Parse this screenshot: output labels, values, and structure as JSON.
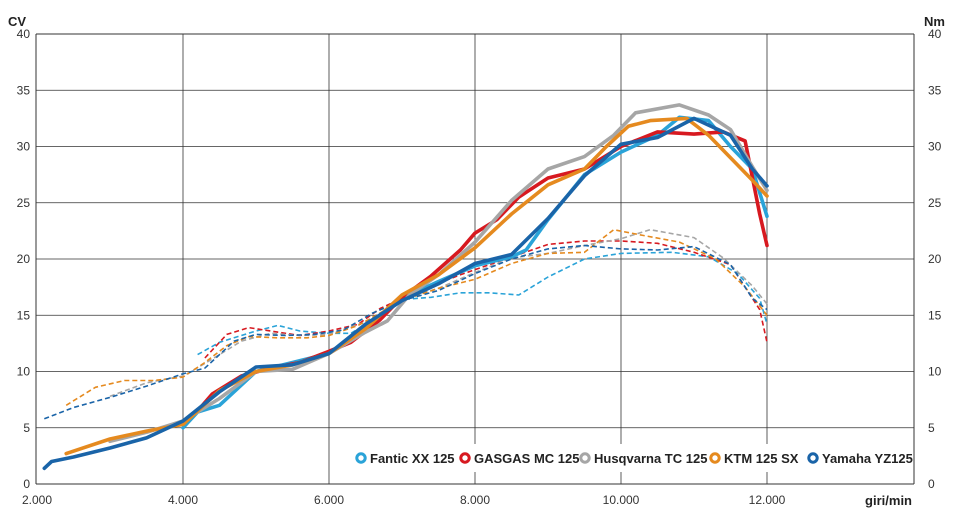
{
  "chart_data": {
    "type": "line",
    "left_unit": "CV",
    "right_unit": "Nm",
    "xlabel": "giri/min",
    "xlim": [
      2000,
      12000
    ],
    "ylim": [
      0,
      40
    ],
    "x_ticks": [
      2000,
      4000,
      6000,
      8000,
      10000,
      12000
    ],
    "x_tick_labels": [
      "2.000",
      "4.000",
      "6.000",
      "8.000",
      "10.000",
      "12.000"
    ],
    "y_ticks": [
      0,
      5,
      10,
      15,
      20,
      25,
      30,
      35,
      40
    ],
    "y_tick_labels": [
      "0",
      "5",
      "10",
      "15",
      "20",
      "25",
      "30",
      "35",
      "40"
    ],
    "grid": true,
    "legend_position": "bottom-right",
    "series": [
      {
        "name": "Fantic XX 125",
        "color": "#2aa3d8",
        "power": {
          "x": [
            4000,
            4200,
            4500,
            5000,
            5500,
            6000,
            6500,
            7000,
            7500,
            8000,
            8500,
            8700,
            9000,
            9500,
            10000,
            10500,
            10800,
            11200,
            11500,
            11800,
            12000
          ],
          "y": [
            5.0,
            6.4,
            7.0,
            10.0,
            10.8,
            11.6,
            13.8,
            16.5,
            18.0,
            19.4,
            20.2,
            20.8,
            23.5,
            27.5,
            29.5,
            31.0,
            32.6,
            32.3,
            30.0,
            28.0,
            23.8
          ]
        },
        "torque": {
          "x": [
            4200,
            4500,
            5000,
            5300,
            5600,
            6000,
            6300,
            6700,
            7000,
            7400,
            7800,
            8200,
            8600,
            9000,
            9500,
            10000,
            10700,
            11200,
            11600,
            11900,
            12000
          ],
          "y": [
            11.5,
            12.6,
            13.6,
            14.1,
            13.6,
            13.4,
            13.4,
            15.0,
            16.4,
            16.6,
            17.0,
            17.0,
            16.8,
            18.4,
            20.0,
            20.5,
            20.6,
            20.2,
            18.7,
            16.5,
            14.2
          ]
        }
      },
      {
        "name": "GASGAS MC 125",
        "color": "#d71920",
        "power": {
          "x": [
            4200,
            4400,
            4800,
            5200,
            5600,
            6000,
            6300,
            6700,
            7000,
            7400,
            7800,
            8000,
            8300,
            8600,
            9000,
            9500,
            10000,
            10500,
            11000,
            11400,
            11700,
            11900,
            12000
          ],
          "y": [
            6.5,
            8.0,
            9.6,
            10.3,
            10.8,
            11.8,
            12.6,
            14.6,
            16.6,
            18.5,
            20.8,
            22.3,
            23.5,
            25.5,
            27.2,
            28.0,
            30.0,
            31.3,
            31.1,
            31.3,
            30.5,
            24.0,
            21.2
          ]
        },
        "torque": {
          "x": [
            4300,
            4600,
            4900,
            5200,
            5600,
            6000,
            6400,
            6700,
            7000,
            7400,
            7800,
            8200,
            8600,
            9000,
            9500,
            10000,
            10500,
            11000,
            11500,
            11900,
            12000
          ],
          "y": [
            11.2,
            13.3,
            13.9,
            13.6,
            13.2,
            13.6,
            14.2,
            15.6,
            16.5,
            17.6,
            18.6,
            19.5,
            20.4,
            21.3,
            21.6,
            21.6,
            21.4,
            20.6,
            19.5,
            15.5,
            12.6
          ]
        }
      },
      {
        "name": "Husqvarna TC 125",
        "color": "#a6a6a6",
        "power": {
          "x": [
            3000,
            3500,
            4000,
            4500,
            5000,
            5500,
            6000,
            6500,
            6800,
            7100,
            7500,
            8000,
            8500,
            9000,
            9500,
            9900,
            10200,
            10800,
            11200,
            11500,
            11800,
            12000
          ],
          "y": [
            3.8,
            4.6,
            5.6,
            7.6,
            10.0,
            10.2,
            11.6,
            13.5,
            14.5,
            16.8,
            18.6,
            21.5,
            25.2,
            28.0,
            29.1,
            31.0,
            33.0,
            33.7,
            32.8,
            31.5,
            28.2,
            26.1
          ]
        },
        "torque": {
          "x": [
            3000,
            3500,
            4000,
            4400,
            4800,
            5200,
            5600,
            6000,
            6500,
            7000,
            7500,
            8000,
            8500,
            9000,
            9500,
            10000,
            10400,
            11000,
            11400,
            11800,
            12000
          ],
          "y": [
            7.8,
            9.0,
            9.6,
            11.1,
            12.7,
            13.4,
            13.2,
            13.3,
            14.4,
            16.4,
            17.4,
            18.8,
            20.1,
            20.5,
            21.2,
            21.8,
            22.6,
            21.9,
            20.1,
            17.6,
            16.0
          ]
        }
      },
      {
        "name": "KTM 125 SX",
        "color": "#e58a1f",
        "power": {
          "x": [
            2400,
            3000,
            3500,
            4000,
            4500,
            5000,
            5500,
            6000,
            6500,
            7000,
            7500,
            8000,
            8500,
            9000,
            9500,
            9800,
            10100,
            10400,
            10900,
            11200,
            11500,
            11800,
            12000
          ],
          "y": [
            2.7,
            4.0,
            4.7,
            5.3,
            8.3,
            10.0,
            10.6,
            11.6,
            13.8,
            16.8,
            18.6,
            21.0,
            24.0,
            26.6,
            28.0,
            30.0,
            31.8,
            32.3,
            32.5,
            31.0,
            29.0,
            27.0,
            25.6
          ]
        },
        "torque": {
          "x": [
            2400,
            2800,
            3200,
            3600,
            4000,
            4300,
            4600,
            4900,
            5300,
            5700,
            6000,
            6400,
            7000,
            7500,
            8000,
            8500,
            9000,
            9500,
            9900,
            10300,
            10800,
            11300,
            11700,
            12000
          ],
          "y": [
            7.0,
            8.6,
            9.2,
            9.2,
            9.5,
            10.8,
            12.3,
            13.1,
            13.0,
            13.0,
            13.2,
            14.1,
            16.3,
            17.4,
            18.2,
            19.6,
            20.5,
            20.6,
            22.6,
            22.1,
            21.5,
            20.0,
            17.5,
            15.0
          ]
        }
      },
      {
        "name": "Yamaha YZ125",
        "color": "#1a64a8",
        "power": {
          "x": [
            2100,
            2200,
            2500,
            3000,
            3500,
            4000,
            4500,
            5000,
            5500,
            6000,
            6500,
            7000,
            7500,
            8000,
            8500,
            9000,
            9500,
            10000,
            10500,
            11000,
            11500,
            11800,
            12000
          ],
          "y": [
            1.4,
            2.0,
            2.4,
            3.2,
            4.1,
            5.6,
            8.2,
            10.4,
            10.6,
            11.6,
            14.2,
            16.3,
            17.8,
            19.6,
            20.4,
            23.6,
            27.4,
            30.2,
            30.8,
            32.5,
            31.0,
            28.0,
            26.5
          ]
        },
        "torque": {
          "x": [
            2100,
            2500,
            3000,
            3500,
            4000,
            4300,
            4700,
            5000,
            5400,
            5800,
            6200,
            6600,
            7000,
            7500,
            8000,
            8500,
            9000,
            9500,
            10000,
            10500,
            11000,
            11500,
            11800,
            12000
          ],
          "y": [
            5.8,
            6.8,
            7.7,
            8.7,
            9.8,
            10.3,
            12.7,
            13.3,
            13.2,
            13.3,
            13.7,
            15.2,
            16.3,
            17.2,
            18.7,
            20.0,
            20.9,
            21.2,
            20.9,
            20.8,
            21.1,
            19.5,
            16.5,
            15.5
          ]
        }
      }
    ]
  }
}
